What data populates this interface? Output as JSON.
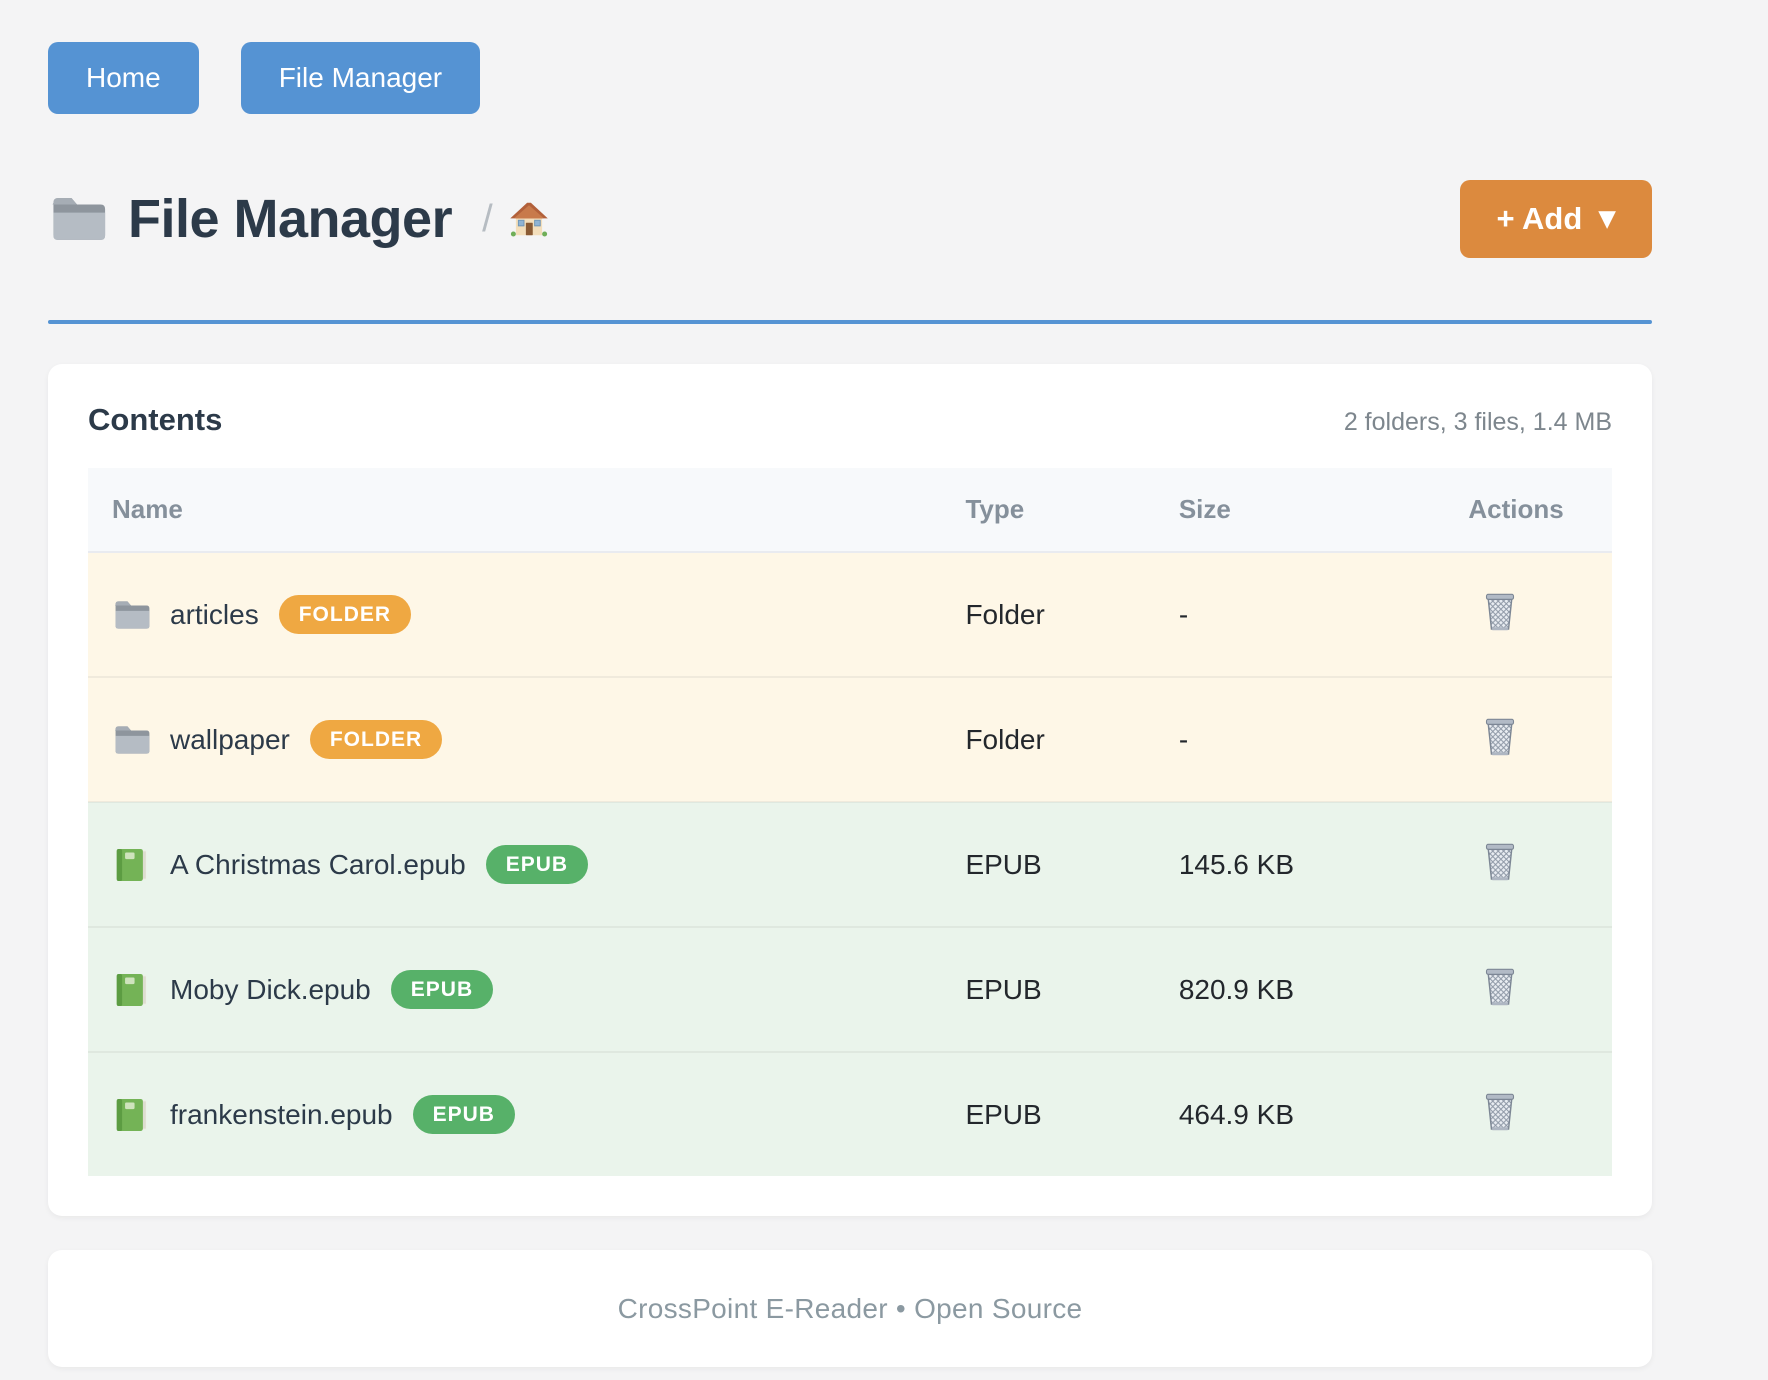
{
  "nav": {
    "buttons": [
      {
        "label": "Home"
      },
      {
        "label": "File Manager"
      }
    ]
  },
  "header": {
    "title": "File Manager",
    "title_icon": "folder-icon",
    "breadcrumb_separator": "/",
    "breadcrumb_home_icon": "house-icon",
    "add_button": {
      "label": "+ Add",
      "caret": "▼"
    }
  },
  "contents": {
    "heading": "Contents",
    "summary": "2 folders, 3 files, 1.4 MB",
    "columns": [
      "Name",
      "Type",
      "Size",
      "Actions"
    ],
    "rows": [
      {
        "name": "articles",
        "icon": "folder-icon",
        "kind": "folder",
        "badge": "FOLDER",
        "type": "Folder",
        "size": "-",
        "action_icon": "trash-icon"
      },
      {
        "name": "wallpaper",
        "icon": "folder-icon",
        "kind": "folder",
        "badge": "FOLDER",
        "type": "Folder",
        "size": "-",
        "action_icon": "trash-icon"
      },
      {
        "name": "A Christmas Carol.epub",
        "icon": "book-icon",
        "kind": "epub",
        "badge": "EPUB",
        "type": "EPUB",
        "size": "145.6 KB",
        "action_icon": "trash-icon"
      },
      {
        "name": "Moby Dick.epub",
        "icon": "book-icon",
        "kind": "epub",
        "badge": "EPUB",
        "type": "EPUB",
        "size": "820.9 KB",
        "action_icon": "trash-icon"
      },
      {
        "name": "frankenstein.epub",
        "icon": "book-icon",
        "kind": "epub",
        "badge": "EPUB",
        "type": "EPUB",
        "size": "464.9 KB",
        "action_icon": "trash-icon"
      }
    ]
  },
  "footer": {
    "text": "CrossPoint E-Reader • Open Source"
  },
  "colors": {
    "primary_blue": "#5593d3",
    "accent_orange": "#dc8a3e",
    "folder_badge_orange": "#efa842",
    "epub_badge_green": "#57b169",
    "folder_row_bg": "#fef7e7",
    "epub_row_bg": "#eaf4eb",
    "header_row_bg": "#f7f9fb",
    "page_bg": "#f4f4f5"
  }
}
